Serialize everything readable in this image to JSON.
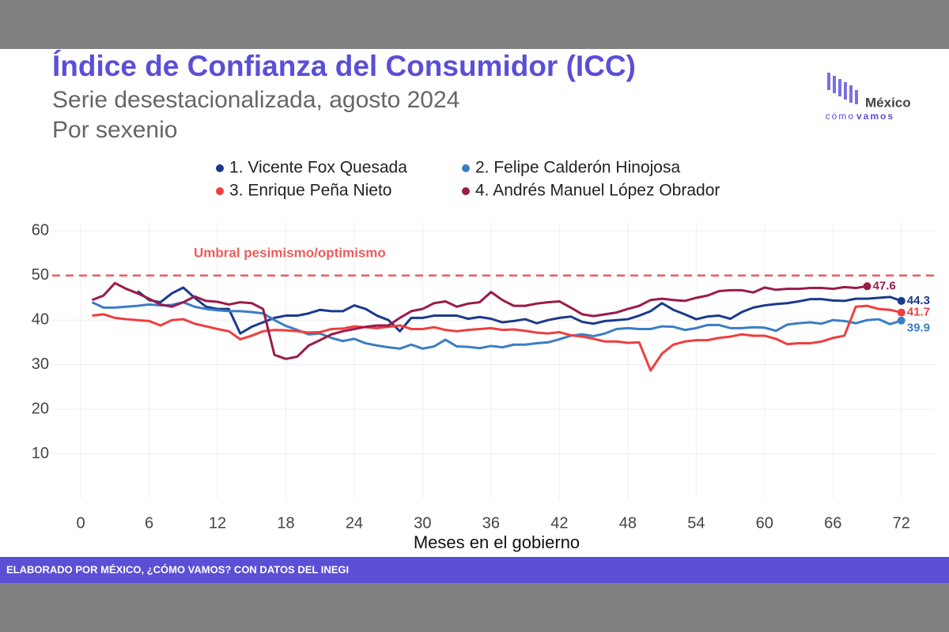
{
  "chart_data": {
    "type": "line",
    "title": "Índice de Confianza del Consumidor (ICC)",
    "subtitle": "Serie desestacionalizada, agosto 2024",
    "subtitle2": "Por sexenio",
    "xlabel": "Meses en el gobierno",
    "annotation": "Umbral pesimismo/optimismo",
    "threshold": 50,
    "threshold_color": "#f05a5a",
    "source": "ELABORADO POR MÉXICO, ¿CÓMO VAMOS? CON DATOS DEL INEGI",
    "logo": {
      "name": "México",
      "tag1": "cómo",
      "tag2": "vamos"
    },
    "grid": true,
    "xlim": [
      -2.5,
      75
    ],
    "ylim": [
      0,
      62
    ],
    "xticks": [
      0,
      6,
      12,
      18,
      24,
      30,
      36,
      42,
      48,
      54,
      60,
      66,
      72
    ],
    "yticks": [
      10,
      20,
      30,
      40,
      50,
      60
    ],
    "x": [
      1,
      2,
      3,
      4,
      5,
      6,
      7,
      8,
      9,
      10,
      11,
      12,
      13,
      14,
      15,
      16,
      17,
      18,
      19,
      20,
      21,
      22,
      23,
      24,
      25,
      26,
      27,
      28,
      29,
      30,
      31,
      32,
      33,
      34,
      35,
      36,
      37,
      38,
      39,
      40,
      41,
      42,
      43,
      44,
      45,
      46,
      47,
      48,
      49,
      50,
      51,
      52,
      53,
      54,
      55,
      56,
      57,
      58,
      59,
      60,
      61,
      62,
      63,
      64,
      65,
      66,
      67,
      68,
      69,
      70,
      71,
      72
    ],
    "series": [
      {
        "name": "1. Vicente Fox Quesada",
        "color": "#1b3a8c",
        "values": [
          null,
          null,
          null,
          null,
          46.5,
          44.5,
          44,
          46,
          47.3,
          45,
          43,
          42.5,
          42.5,
          37,
          38.5,
          39.5,
          40.5,
          41,
          41,
          41.5,
          42.3,
          42,
          42,
          43.3,
          42.5,
          41,
          40,
          37.5,
          40.5,
          40.5,
          41,
          41,
          41,
          40.3,
          40.7,
          40.3,
          39.5,
          39.8,
          40.2,
          39.3,
          40,
          40.5,
          40.8,
          39.6,
          39.2,
          39.8,
          40,
          40.2,
          41,
          42,
          43.8,
          42.3,
          41.3,
          40.2,
          40.8,
          41,
          40.3,
          41.8,
          42.8,
          43.3,
          43.6,
          43.8,
          44.2,
          44.7,
          44.7,
          44.4,
          44.3,
          44.8,
          44.8,
          45,
          45.2,
          44.3
        ]
      },
      {
        "name": "2. Felipe Calderón Hinojosa",
        "color": "#3b7dc4",
        "values": [
          44,
          42.8,
          42.8,
          43,
          43.2,
          43.5,
          43.3,
          43.4,
          44,
          43,
          42.5,
          42.2,
          42,
          42,
          41.8,
          41.5,
          40,
          38.7,
          37.8,
          36.8,
          37,
          36,
          35.3,
          35.8,
          34.8,
          34.3,
          33.9,
          33.6,
          34.5,
          33.6,
          34.1,
          35.6,
          34.1,
          34,
          33.7,
          34.2,
          33.9,
          34.5,
          34.5,
          34.8,
          35,
          35.7,
          36.5,
          36.8,
          36.4,
          37,
          38,
          38.2,
          38,
          38,
          38.6,
          38.5,
          37.8,
          38.2,
          38.9,
          38.9,
          38.2,
          38.2,
          38.4,
          38.3,
          37.6,
          39,
          39.3,
          39.5,
          39.2,
          40,
          39.8,
          39.3,
          40,
          40.2,
          39.1,
          39.9
        ]
      },
      {
        "name": "3. Enrique Peña Nieto",
        "color": "#ef3e3e",
        "values": [
          41,
          41.3,
          40.5,
          40.2,
          40,
          39.8,
          38.8,
          40,
          40.2,
          39.2,
          38.6,
          38,
          37.5,
          35.7,
          36.5,
          37.5,
          37.8,
          37.7,
          37.5,
          37.2,
          37.3,
          38,
          38.1,
          38.6,
          38.4,
          38.2,
          38.5,
          38.8,
          38,
          38,
          38.4,
          37.8,
          37.5,
          37.8,
          38,
          38.2,
          37.8,
          37.9,
          37.6,
          37.2,
          37,
          37.3,
          36.6,
          36.3,
          35.8,
          35.2,
          35.2,
          34.9,
          35,
          28.7,
          32.5,
          34.5,
          35.2,
          35.5,
          35.5,
          36,
          36.3,
          36.8,
          36.5,
          36.5,
          35.8,
          34.6,
          34.8,
          34.8,
          35.2,
          36,
          36.5,
          43,
          43.2,
          42.5,
          42.3,
          41.7
        ]
      },
      {
        "name": "4. Andrés Manuel López Obrador",
        "color": "#9b1b4a",
        "values": [
          44.5,
          45.5,
          48.3,
          47,
          46,
          44.8,
          43.5,
          43,
          44,
          45.3,
          44.3,
          44.1,
          43.5,
          44,
          43.8,
          42.5,
          32.2,
          31.3,
          31.8,
          34.3,
          35.5,
          36.8,
          37.5,
          38,
          38.5,
          38.8,
          38.8,
          40.5,
          42,
          42.5,
          43.8,
          44.2,
          43,
          43.7,
          44,
          46.3,
          44.5,
          43.2,
          43.2,
          43.7,
          44,
          44.2,
          42.8,
          41.3,
          40.9,
          41.3,
          41.7,
          42.5,
          43.2,
          44.5,
          44.8,
          44.5,
          44.3,
          45,
          45.5,
          46.5,
          46.7,
          46.7,
          46.2,
          47.3,
          46.8,
          47,
          47,
          47.2,
          47.2,
          47,
          47.4,
          47.2,
          47.6,
          null,
          null,
          null
        ]
      }
    ]
  }
}
